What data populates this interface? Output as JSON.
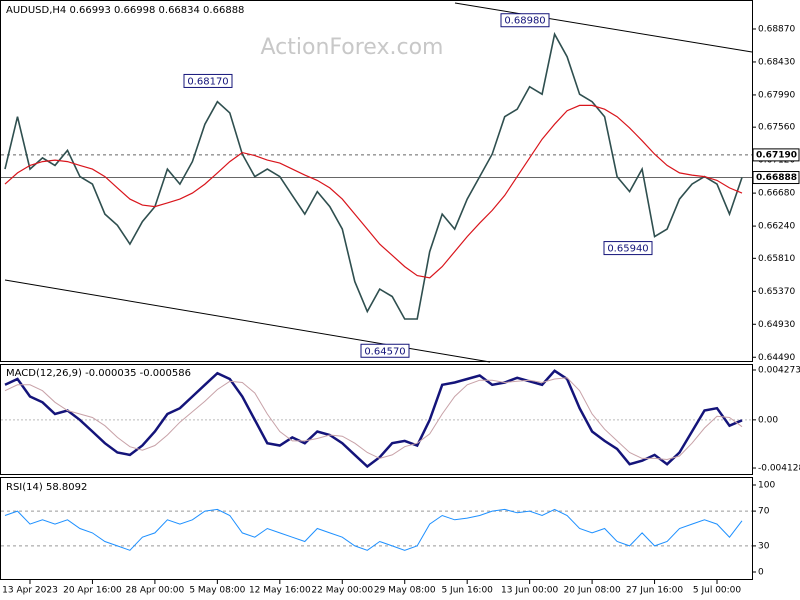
{
  "header": "AUDUSD,H4  0.66993 0.66998 0.66834 0.66888",
  "watermark": "ActionForex.com",
  "chart_data": [
    {
      "type": "line",
      "categories": [
        null,
        null,
        "13 Apr 2023",
        null,
        null,
        null,
        null,
        "20 Apr 16:00",
        null,
        null,
        null,
        null,
        "28 Apr 00:00",
        null,
        null,
        null,
        null,
        "5 May 08:00",
        null,
        null,
        null,
        null,
        "12 May 16:00",
        null,
        null,
        null,
        null,
        "22 May 00:00",
        null,
        null,
        null,
        null,
        "29 May 08:00",
        null,
        null,
        null,
        null,
        "5 Jun 16:00",
        null,
        null,
        null,
        null,
        "13 Jun 00:00",
        null,
        null,
        null,
        null,
        "20 Jun 08:00",
        null,
        null,
        null,
        null,
        "27 Jun 16:00",
        null,
        null,
        null,
        null,
        "5 Jul 00:00",
        null,
        null
      ],
      "series": [
        {
          "name": "AUDUSD",
          "color": "#2f4f4f",
          "values": [
            0.67,
            0.677,
            0.67,
            0.6715,
            0.6705,
            0.6725,
            0.669,
            0.668,
            0.664,
            0.6625,
            0.66,
            0.663,
            0.665,
            0.67,
            0.668,
            0.671,
            0.676,
            0.679,
            0.6775,
            0.672,
            0.669,
            0.67,
            0.669,
            0.6665,
            0.664,
            0.667,
            0.665,
            0.662,
            0.655,
            0.651,
            0.654,
            0.653,
            0.65,
            0.65,
            0.659,
            0.664,
            0.662,
            0.666,
            0.669,
            0.672,
            0.677,
            0.678,
            0.681,
            0.68,
            0.688,
            0.685,
            0.68,
            0.679,
            0.677,
            0.669,
            0.667,
            0.67,
            0.661,
            0.662,
            0.666,
            0.668,
            0.669,
            0.668,
            0.664,
            0.66888
          ]
        },
        {
          "name": "MA",
          "color": "#d9151c",
          "values": [
            0.668,
            0.6695,
            0.6705,
            0.671,
            0.6712,
            0.671,
            0.6705,
            0.67,
            0.669,
            0.6675,
            0.666,
            0.6652,
            0.665,
            0.6655,
            0.666,
            0.6668,
            0.668,
            0.6695,
            0.671,
            0.6722,
            0.6718,
            0.6712,
            0.6708,
            0.67,
            0.6692,
            0.6685,
            0.6675,
            0.666,
            0.664,
            0.662,
            0.66,
            0.6585,
            0.657,
            0.6558,
            0.6555,
            0.657,
            0.659,
            0.661,
            0.6628,
            0.6645,
            0.6665,
            0.669,
            0.6715,
            0.674,
            0.676,
            0.6778,
            0.6785,
            0.6785,
            0.678,
            0.677,
            0.6755,
            0.6738,
            0.672,
            0.6705,
            0.6695,
            0.6692,
            0.669,
            0.6685,
            0.6675,
            0.6668
          ]
        }
      ],
      "ylim": [
        0.6444,
        0.6923
      ],
      "yticks": [
        {
          "value": 0.6887,
          "label": "0.68870"
        },
        {
          "value": 0.6843,
          "label": "0.68430"
        },
        {
          "value": 0.6799,
          "label": "0.67990"
        },
        {
          "value": 0.6756,
          "label": "0.67560"
        },
        {
          "value": 0.6712,
          "label": "0.67120"
        },
        {
          "value": 0.6668,
          "label": "0.66680"
        },
        {
          "value": 0.6624,
          "label": "0.66240"
        },
        {
          "value": 0.6581,
          "label": "0.65810"
        },
        {
          "value": 0.6537,
          "label": "0.65370"
        },
        {
          "value": 0.6493,
          "label": "0.64930"
        },
        {
          "value": 0.6449,
          "label": "0.64490"
        }
      ],
      "annotations": [
        {
          "value": 0.6817,
          "label": "0.68170"
        },
        {
          "value": 0.6898,
          "label": "0.68980"
        },
        {
          "value": 0.6457,
          "label": "0.64570"
        },
        {
          "value": 0.6594,
          "label": "0.65940"
        }
      ],
      "price_lines": [
        {
          "value": 0.6719,
          "label": "0.67190",
          "style": "dashed"
        },
        {
          "value": 0.66888,
          "label": "0.66888",
          "style": "solid"
        }
      ]
    },
    {
      "type": "line",
      "title": "MACD(12,26,9) -0.000035 -0.000586",
      "series": [
        {
          "name": "MACD",
          "color": "#14147a",
          "width": 2.5,
          "values": [
            0.003,
            0.0035,
            0.002,
            0.0015,
            0.0005,
            0.0008,
            0,
            -0.001,
            -0.002,
            -0.0028,
            -0.003,
            -0.0022,
            -0.001,
            0.0005,
            0.001,
            0.002,
            0.003,
            0.004,
            0.0035,
            0.002,
            0,
            -0.002,
            -0.0022,
            -0.0015,
            -0.002,
            -0.001,
            -0.0013,
            -0.002,
            -0.003,
            -0.004,
            -0.0032,
            -0.002,
            -0.0018,
            -0.0022,
            0,
            0.003,
            0.0032,
            0.0035,
            0.0038,
            0.003,
            0.0032,
            0.0036,
            0.0033,
            0.003,
            0.0042,
            0.0035,
            0.001,
            -0.001,
            -0.0018,
            -0.0025,
            -0.0038,
            -0.0035,
            -0.003,
            -0.0038,
            -0.0028,
            -0.001,
            0.0008,
            0.001,
            -0.0005,
            -3.5e-05
          ]
        },
        {
          "name": "Signal",
          "color": "#c8a2a8",
          "width": 1,
          "values": [
            0.0025,
            0.003,
            0.003,
            0.0025,
            0.0015,
            0.0008,
            0.0005,
            0.0002,
            -0.0005,
            -0.0015,
            -0.0023,
            -0.0026,
            -0.0022,
            -0.0013,
            -0.0002,
            0.0007,
            0.0016,
            0.0026,
            0.0033,
            0.0032,
            0.0023,
            0.0005,
            -0.001,
            -0.0018,
            -0.0018,
            -0.0016,
            -0.0013,
            -0.0014,
            -0.002,
            -0.0028,
            -0.0033,
            -0.003,
            -0.0023,
            -0.002,
            -0.0012,
            0.0005,
            0.002,
            0.003,
            0.0034,
            0.0034,
            0.0032,
            0.0033,
            0.0034,
            0.0032,
            0.0035,
            0.0036,
            0.0025,
            0.0005,
            -0.0008,
            -0.0018,
            -0.0028,
            -0.0033,
            -0.0033,
            -0.0034,
            -0.0031,
            -0.002,
            -0.0007,
            0.0003,
            0.0002,
            -0.000586
          ]
        }
      ],
      "ylim": [
        -0.00464,
        0.0047
      ],
      "yticks": [
        0.004273,
        {
          "value": 0,
          "label": "0.00"
        },
        -0.004128
      ]
    },
    {
      "type": "line",
      "title": "RSI(14) 58.8092",
      "series": [
        {
          "name": "RSI",
          "color": "#1e90ff",
          "width": 1,
          "values": [
            65,
            70,
            55,
            60,
            55,
            60,
            50,
            45,
            35,
            30,
            25,
            40,
            45,
            60,
            55,
            60,
            70,
            72,
            65,
            45,
            40,
            50,
            45,
            40,
            35,
            50,
            45,
            40,
            30,
            25,
            35,
            30,
            25,
            30,
            55,
            65,
            60,
            62,
            65,
            70,
            72,
            68,
            70,
            65,
            72,
            65,
            50,
            45,
            50,
            35,
            30,
            45,
            30,
            35,
            50,
            55,
            60,
            55,
            40,
            58.8092
          ]
        }
      ],
      "ylim": [
        0,
        100
      ],
      "yticks": [
        100,
        70,
        30,
        0
      ],
      "levels": [
        70,
        30
      ]
    }
  ]
}
